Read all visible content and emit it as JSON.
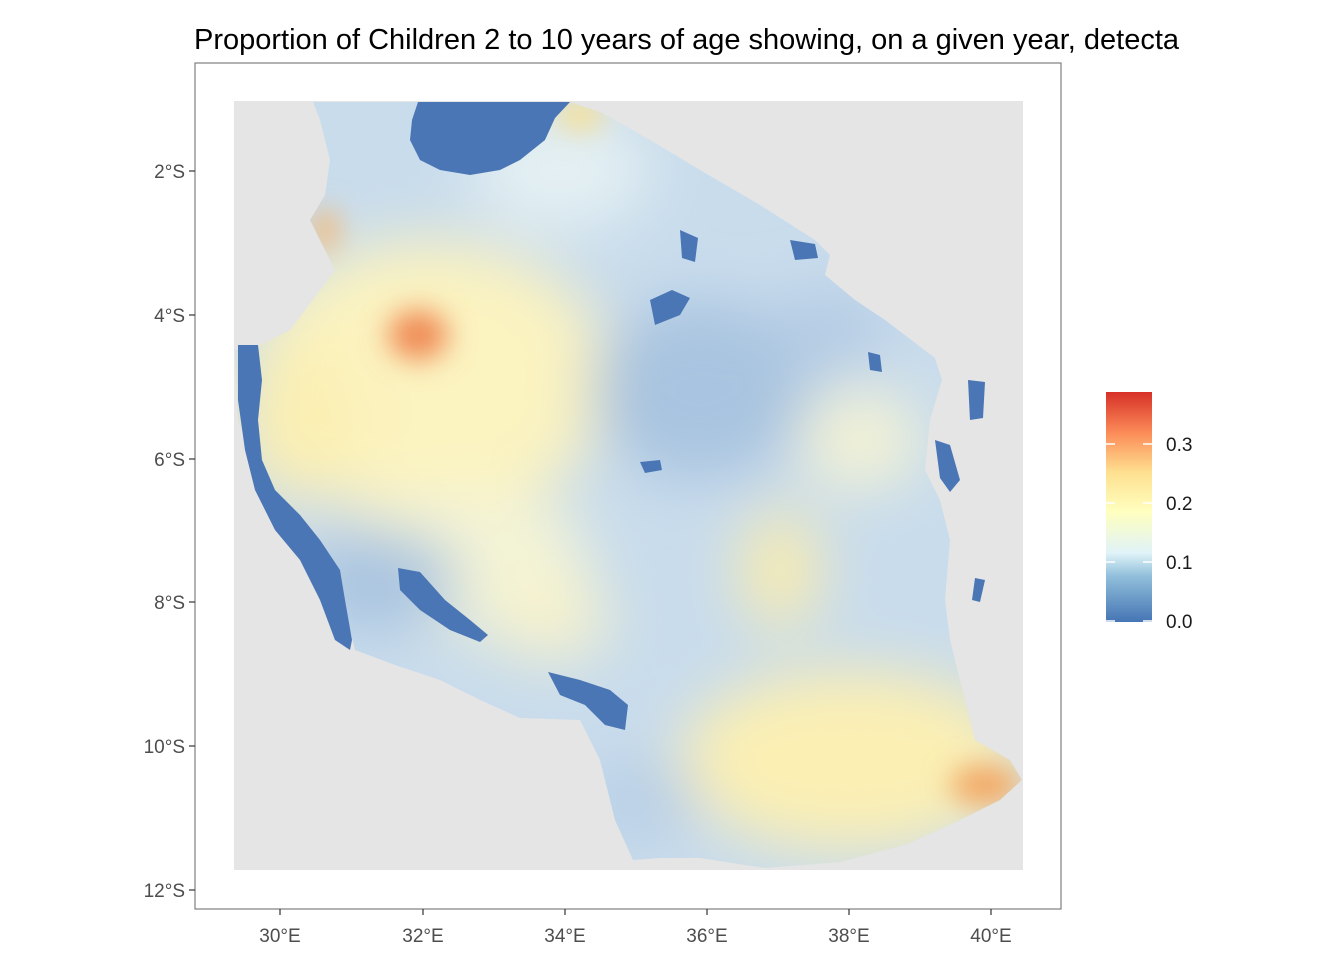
{
  "title": "Proportion of Children 2 to 10 years of age showing, on a given year, detecta",
  "axes": {
    "x_ticks": [
      "30°E",
      "32°E",
      "34°E",
      "36°E",
      "38°E",
      "40°E"
    ],
    "y_ticks": [
      "2°S",
      "4°S",
      "6°S",
      "8°S",
      "10°S",
      "12°S"
    ]
  },
  "legend": {
    "ticks": [
      "0.3",
      "0.2",
      "0.1",
      "0.0"
    ],
    "colors": [
      "#d73027",
      "#fc8d59",
      "#fee090",
      "#ffffbf",
      "#e0f3f8",
      "#91bfdb",
      "#4575b4"
    ]
  },
  "colors": {
    "background_tile": "#e5e5e5",
    "water": "#4a76b5",
    "panel_border": "#7f7f7f"
  },
  "chart_data": {
    "type": "heatmap",
    "subject": "Tanzania",
    "x_unit": "longitude °E",
    "y_unit": "latitude °S",
    "xlim": [
      28.8,
      41.0
    ],
    "ylim": [
      -12.2,
      -0.6
    ],
    "raster_extent": {
      "lon": [
        29.35,
        40.45
      ],
      "lat": [
        -11.75,
        -1.0
      ]
    },
    "value_range": [
      0.0,
      0.38
    ],
    "hotspots": [
      {
        "lon": 31.9,
        "lat": -4.3,
        "value": 0.3
      },
      {
        "lon": 40.0,
        "lat": -10.5,
        "value": 0.3
      },
      {
        "lon": 30.5,
        "lat": -2.7,
        "value": 0.3
      },
      {
        "lon": 33.2,
        "lat": -5.5,
        "value": 0.2
      },
      {
        "lon": 38.8,
        "lat": -9.6,
        "value": 0.2
      },
      {
        "lon": 37.0,
        "lat": -7.3,
        "value": 0.22
      },
      {
        "lon": 34.4,
        "lat": -8.0,
        "value": 0.18
      }
    ],
    "water_bodies": [
      "Lake Victoria",
      "Lake Tanganyika",
      "Lake Rukwa",
      "Lake Nyasa",
      "Lake Eyasi",
      "Lake Manyara",
      "Mtera Reservoir",
      "Pemba",
      "Zanzibar",
      "Mafia"
    ]
  }
}
